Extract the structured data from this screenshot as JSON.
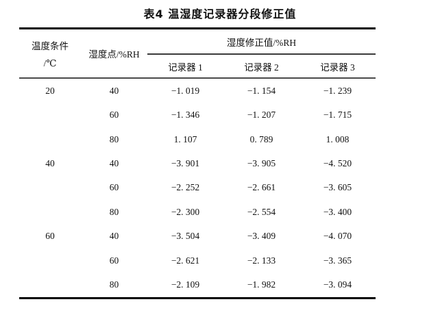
{
  "title": "表4  温湿度记录器分段修正值",
  "table": {
    "temp_header_line1": "温度条件",
    "temp_header_line2": "/℃",
    "point_header": "湿度点/%RH",
    "group_header": "湿度修正值/%RH",
    "recorder_headers": [
      "记录器 1",
      "记录器 2",
      "记录器 3"
    ],
    "rows": [
      {
        "temp": "20",
        "point": "40",
        "r1": "−1. 019",
        "r2": "−1. 154",
        "r3": "−1. 239"
      },
      {
        "temp": "",
        "point": "60",
        "r1": "−1. 346",
        "r2": "−1. 207",
        "r3": "−1. 715"
      },
      {
        "temp": "",
        "point": "80",
        "r1": "1. 107",
        "r2": "0. 789",
        "r3": "1. 008"
      },
      {
        "temp": "40",
        "point": "40",
        "r1": "−3. 901",
        "r2": "−3. 905",
        "r3": "−4. 520"
      },
      {
        "temp": "",
        "point": "60",
        "r1": "−2. 252",
        "r2": "−2. 661",
        "r3": "−3. 605"
      },
      {
        "temp": "",
        "point": "80",
        "r1": "−2. 300",
        "r2": "−2. 554",
        "r3": "−3. 400"
      },
      {
        "temp": "60",
        "point": "40",
        "r1": "−3. 504",
        "r2": "−3. 409",
        "r3": "−4. 070"
      },
      {
        "temp": "",
        "point": "60",
        "r1": "−2. 621",
        "r2": "−2. 133",
        "r3": "−3. 365"
      },
      {
        "temp": "",
        "point": "80",
        "r1": "−2. 109",
        "r2": "−1. 982",
        "r3": "−3. 094"
      }
    ]
  }
}
